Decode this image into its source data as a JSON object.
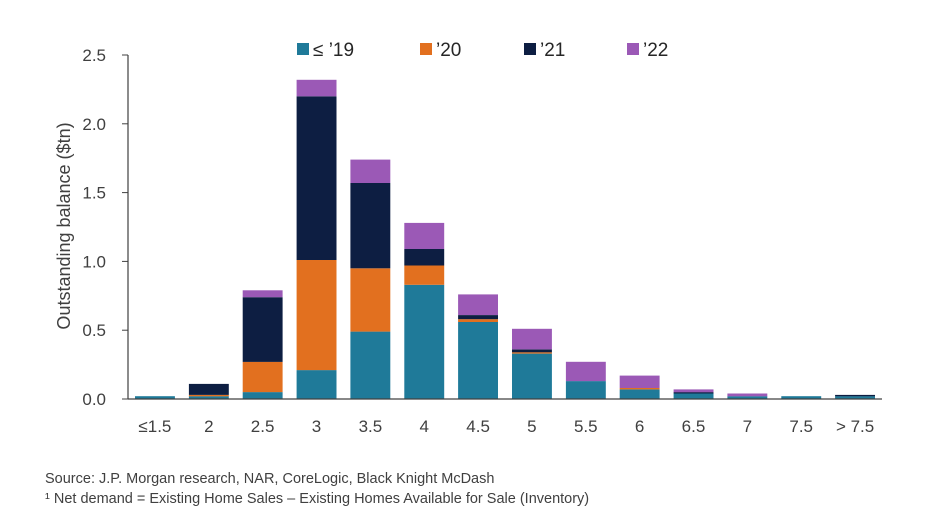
{
  "chart_data": {
    "type": "bar",
    "stacked": true,
    "categories": [
      "≤1.5",
      "2",
      "2.5",
      "3",
      "3.5",
      "4",
      "4.5",
      "5",
      "5.5",
      "6",
      "6.5",
      "7",
      "7.5",
      "> 7.5"
    ],
    "series": [
      {
        "name": "≤ ’19",
        "color": "#1f7a99",
        "values": [
          0.02,
          0.02,
          0.05,
          0.21,
          0.49,
          0.83,
          0.56,
          0.33,
          0.13,
          0.07,
          0.04,
          0.02,
          0.02,
          0.02
        ]
      },
      {
        "name": "’20",
        "color": "#e2701f",
        "values": [
          0.0,
          0.01,
          0.22,
          0.8,
          0.46,
          0.14,
          0.02,
          0.01,
          0.0,
          0.01,
          0.0,
          0.0,
          0.0,
          0.0
        ]
      },
      {
        "name": "’21",
        "color": "#0d1e42",
        "values": [
          0.0,
          0.08,
          0.47,
          1.19,
          0.62,
          0.12,
          0.03,
          0.02,
          0.0,
          0.0,
          0.01,
          0.0,
          0.0,
          0.01
        ]
      },
      {
        "name": "’22",
        "color": "#9b59b6",
        "values": [
          0.0,
          0.0,
          0.05,
          0.12,
          0.17,
          0.19,
          0.15,
          0.15,
          0.14,
          0.09,
          0.02,
          0.02,
          0.0,
          0.0
        ]
      }
    ],
    "title": "",
    "xlabel": "",
    "ylabel": "Outstanding balance ($tn)",
    "ylim": [
      0,
      2.5
    ],
    "yticks": [
      "0.0",
      "0.5",
      "1.0",
      "1.5",
      "2.0",
      "2.5"
    ],
    "grid": false,
    "legend": "top"
  },
  "notes": {
    "source": "Source: J.P. Morgan research, NAR, CoreLogic, Black Knight McDash",
    "footnote": "¹ Net demand = Existing Home Sales – Existing Homes Available for Sale (Inventory)"
  }
}
